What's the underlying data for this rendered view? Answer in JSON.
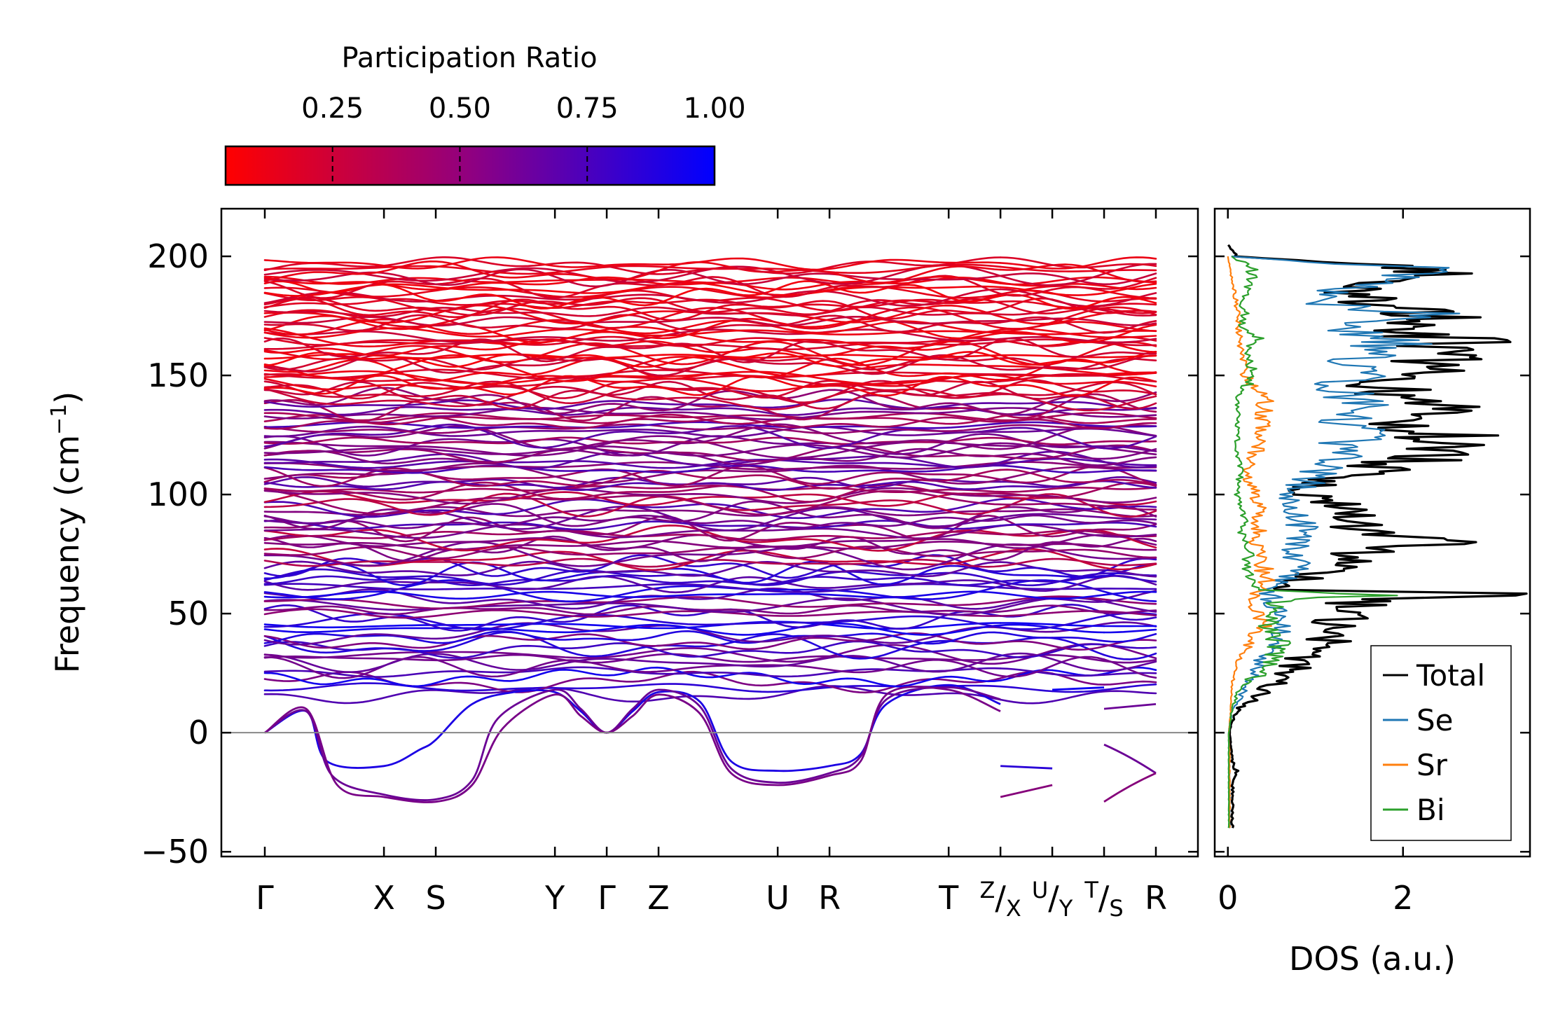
{
  "chart_data": [
    {
      "type": "line",
      "subtype": "phonon-band-structure",
      "ylabel": "Frequency (cm⁻¹)",
      "ylabel_base": "Frequency (cm",
      "ylabel_sup": "−1",
      "ylabel_close": ")",
      "ylim": [
        -52,
        220
      ],
      "yticks": [
        -50,
        0,
        50,
        100,
        150,
        200
      ],
      "ytick_labels": [
        "−50",
        "0",
        "50",
        "100",
        "150",
        "200"
      ],
      "kpath_labels": [
        "Γ",
        "X",
        "S",
        "Y",
        "Γ",
        "Z",
        "U",
        "R",
        "T",
        "Z",
        "X",
        "U",
        "Y",
        "T",
        "S",
        "R"
      ],
      "kpath_positions": [
        0,
        2.3,
        3.3,
        5.6,
        6.6,
        7.6,
        9.9,
        10.9,
        13.2,
        14.2,
        15.2,
        16.2,
        17.2
      ],
      "kpath_breaks": [
        14.2,
        15.2,
        16.2
      ],
      "colorbar": {
        "label": "Participation Ratio",
        "range": [
          0.04,
          1.0
        ],
        "ticks": [
          0.25,
          0.5,
          0.75,
          1.0
        ],
        "tick_labels": [
          "0.25",
          "0.50",
          "0.75",
          "1.00"
        ],
        "color_low": "#ff0000",
        "color_high": "#0000ff"
      },
      "acoustic_branches": [
        {
          "label": "acoustic-1",
          "points": [
            [
              0,
              0
            ],
            [
              0.8,
              9
            ],
            [
              1.2,
              -12
            ],
            [
              2.3,
              -14
            ],
            [
              3.0,
              -7
            ],
            [
              3.3,
              -3
            ],
            [
              4.0,
              12
            ],
            [
              4.8,
              17
            ],
            [
              5.6,
              17
            ],
            [
              6.1,
              9
            ],
            [
              6.6,
              0
            ],
            [
              7.1,
              9
            ],
            [
              7.6,
              17
            ],
            [
              8.4,
              13
            ],
            [
              9.0,
              -12
            ],
            [
              9.9,
              -16
            ],
            [
              10.9,
              -14
            ],
            [
              11.5,
              -9
            ],
            [
              12.0,
              12
            ],
            [
              13.2,
              20
            ],
            [
              14.2,
              12
            ]
          ],
          "pr": 0.9
        },
        {
          "label": "acoustic-2",
          "points": [
            [
              0,
              0
            ],
            [
              0.8,
              9
            ],
            [
              1.3,
              -18
            ],
            [
              2.3,
              -26
            ],
            [
              3.3,
              -28
            ],
            [
              4.0,
              -20
            ],
            [
              4.5,
              6
            ],
            [
              5.6,
              18
            ],
            [
              6.1,
              10
            ],
            [
              6.6,
              0
            ],
            [
              7.1,
              10
            ],
            [
              7.6,
              18
            ],
            [
              8.4,
              11
            ],
            [
              9.0,
              -15
            ],
            [
              9.9,
              -21
            ],
            [
              10.9,
              -17
            ],
            [
              11.5,
              -10
            ],
            [
              12.0,
              14
            ],
            [
              13.2,
              19
            ],
            [
              14.2,
              14
            ]
          ],
          "pr": 0.6
        },
        {
          "label": "acoustic-3",
          "points": [
            [
              0,
              0
            ],
            [
              0.8,
              10
            ],
            [
              1.4,
              -22
            ],
            [
              2.3,
              -27
            ],
            [
              3.3,
              -29
            ],
            [
              4.0,
              -22
            ],
            [
              4.6,
              2
            ],
            [
              5.6,
              16
            ],
            [
              6.1,
              7
            ],
            [
              6.6,
              0
            ],
            [
              7.1,
              7
            ],
            [
              7.6,
              16
            ],
            [
              8.4,
              8
            ],
            [
              9.0,
              -17
            ],
            [
              9.9,
              -22
            ],
            [
              10.9,
              -18
            ],
            [
              11.5,
              -12
            ],
            [
              12.0,
              16
            ],
            [
              13.2,
              18
            ],
            [
              14.2,
              9
            ]
          ],
          "pr": 0.55
        }
      ],
      "segment_branches": [
        {
          "x": [
            14.2,
            15.2
          ],
          "y": [
            -14,
            -15
          ],
          "pr": 0.85
        },
        {
          "x": [
            14.2,
            15.2
          ],
          "y": [
            -27,
            -22
          ],
          "pr": 0.5
        },
        {
          "x": [
            16.2,
            17.2
          ],
          "y": [
            -5,
            -17
          ],
          "pr": 0.6
        },
        {
          "x": [
            16.2,
            17.2
          ],
          "y": [
            -29,
            -17
          ],
          "pr": 0.5
        },
        {
          "x": [
            16.2,
            17.2
          ],
          "y": [
            10,
            12
          ],
          "pr": 0.6
        },
        {
          "x": [
            15.2,
            16.2
          ],
          "y": [
            18,
            19
          ],
          "pr": 0.95
        }
      ],
      "optical_band_count": 130,
      "optical_range": [
        16,
        197
      ],
      "x_start_label": 0,
      "x_end_label": 17.2
    },
    {
      "type": "line",
      "subtype": "density-of-states",
      "xlabel": "DOS (a.u.)",
      "xlim": [
        -0.15,
        3.45
      ],
      "xticks": [
        0,
        2
      ],
      "xtick_labels": [
        "0",
        "2"
      ],
      "ylim": [
        -52,
        220
      ],
      "legend_position": "lower-right",
      "series": [
        {
          "name": "Total",
          "color": "#000000",
          "points": [
            [
              -40,
              0.05
            ],
            [
              -30,
              0.05
            ],
            [
              -20,
              0.06
            ],
            [
              -16,
              0.1
            ],
            [
              -12,
              0.05
            ],
            [
              -5,
              0.03
            ],
            [
              0,
              0.02
            ],
            [
              5,
              0.05
            ],
            [
              10,
              0.12
            ],
            [
              15,
              0.35
            ],
            [
              20,
              0.5
            ],
            [
              25,
              0.7
            ],
            [
              30,
              0.8
            ],
            [
              35,
              1.0
            ],
            [
              40,
              1.2
            ],
            [
              45,
              1.3
            ],
            [
              50,
              1.25
            ],
            [
              55,
              1.5
            ],
            [
              58,
              3.3
            ],
            [
              60,
              0.6
            ],
            [
              65,
              0.9
            ],
            [
              70,
              1.3
            ],
            [
              75,
              1.4
            ],
            [
              80,
              2.4
            ],
            [
              85,
              1.5
            ],
            [
              90,
              1.6
            ],
            [
              95,
              1.3
            ],
            [
              100,
              0.9
            ],
            [
              105,
              1.0
            ],
            [
              110,
              1.6
            ],
            [
              115,
              2.2
            ],
            [
              120,
              2.3
            ],
            [
              125,
              2.5
            ],
            [
              130,
              2.0
            ],
            [
              135,
              2.5
            ],
            [
              140,
              2.0
            ],
            [
              145,
              1.8
            ],
            [
              150,
              2.3
            ],
            [
              155,
              2.1
            ],
            [
              160,
              2.7
            ],
            [
              165,
              2.5
            ],
            [
              170,
              1.9
            ],
            [
              175,
              2.6
            ],
            [
              180,
              1.6
            ],
            [
              185,
              1.5
            ],
            [
              190,
              2.2
            ],
            [
              195,
              2.3
            ],
            [
              200,
              0.1
            ],
            [
              205,
              0.0
            ]
          ]
        },
        {
          "name": "Se",
          "color": "#1f77b4",
          "points": [
            [
              -40,
              0.02
            ],
            [
              -20,
              0.02
            ],
            [
              0,
              0.01
            ],
            [
              10,
              0.05
            ],
            [
              15,
              0.15
            ],
            [
              20,
              0.2
            ],
            [
              25,
              0.3
            ],
            [
              30,
              0.4
            ],
            [
              35,
              0.5
            ],
            [
              40,
              0.55
            ],
            [
              45,
              0.6
            ],
            [
              50,
              0.6
            ],
            [
              55,
              0.5
            ],
            [
              60,
              0.5
            ],
            [
              65,
              0.7
            ],
            [
              70,
              0.8
            ],
            [
              75,
              0.7
            ],
            [
              80,
              0.9
            ],
            [
              85,
              0.9
            ],
            [
              90,
              0.8
            ],
            [
              95,
              0.7
            ],
            [
              100,
              0.6
            ],
            [
              105,
              0.9
            ],
            [
              110,
              1.1
            ],
            [
              115,
              1.3
            ],
            [
              120,
              1.2
            ],
            [
              125,
              1.6
            ],
            [
              130,
              1.3
            ],
            [
              135,
              1.6
            ],
            [
              140,
              1.5
            ],
            [
              145,
              1.2
            ],
            [
              150,
              1.6
            ],
            [
              155,
              1.4
            ],
            [
              160,
              1.8
            ],
            [
              165,
              1.9
            ],
            [
              170,
              1.4
            ],
            [
              175,
              2.3
            ],
            [
              180,
              1.2
            ],
            [
              185,
              1.1
            ],
            [
              190,
              2.0
            ],
            [
              195,
              2.2
            ],
            [
              200,
              0.05
            ]
          ]
        },
        {
          "name": "Sr",
          "color": "#ff7f0e",
          "points": [
            [
              -40,
              0.02
            ],
            [
              -10,
              0.02
            ],
            [
              0,
              0.01
            ],
            [
              10,
              0.03
            ],
            [
              20,
              0.05
            ],
            [
              30,
              0.1
            ],
            [
              35,
              0.2
            ],
            [
              40,
              0.3
            ],
            [
              45,
              0.4
            ],
            [
              50,
              0.35
            ],
            [
              55,
              0.3
            ],
            [
              60,
              0.35
            ],
            [
              65,
              0.45
            ],
            [
              70,
              0.4
            ],
            [
              75,
              0.35
            ],
            [
              80,
              0.3
            ],
            [
              85,
              0.35
            ],
            [
              90,
              0.3
            ],
            [
              95,
              0.35
            ],
            [
              100,
              0.3
            ],
            [
              110,
              0.2
            ],
            [
              120,
              0.35
            ],
            [
              130,
              0.4
            ],
            [
              140,
              0.45
            ],
            [
              150,
              0.2
            ],
            [
              160,
              0.15
            ],
            [
              170,
              0.12
            ],
            [
              180,
              0.1
            ],
            [
              190,
              0.05
            ],
            [
              200,
              0.0
            ]
          ]
        },
        {
          "name": "Bi",
          "color": "#2ca02c",
          "points": [
            [
              -40,
              0.01
            ],
            [
              0,
              0.01
            ],
            [
              10,
              0.05
            ],
            [
              20,
              0.15
            ],
            [
              25,
              0.4
            ],
            [
              30,
              0.5
            ],
            [
              35,
              0.6
            ],
            [
              40,
              0.55
            ],
            [
              45,
              0.45
            ],
            [
              50,
              0.55
            ],
            [
              55,
              0.5
            ],
            [
              58,
              1.9
            ],
            [
              60,
              0.3
            ],
            [
              65,
              0.25
            ],
            [
              70,
              0.2
            ],
            [
              75,
              0.25
            ],
            [
              80,
              0.2
            ],
            [
              85,
              0.15
            ],
            [
              90,
              0.2
            ],
            [
              95,
              0.15
            ],
            [
              100,
              0.1
            ],
            [
              110,
              0.15
            ],
            [
              120,
              0.1
            ],
            [
              130,
              0.12
            ],
            [
              140,
              0.1
            ],
            [
              150,
              0.3
            ],
            [
              160,
              0.2
            ],
            [
              165,
              0.35
            ],
            [
              170,
              0.15
            ],
            [
              175,
              0.2
            ],
            [
              180,
              0.15
            ],
            [
              185,
              0.2
            ],
            [
              190,
              0.25
            ],
            [
              195,
              0.3
            ],
            [
              200,
              0.05
            ]
          ]
        }
      ]
    }
  ]
}
